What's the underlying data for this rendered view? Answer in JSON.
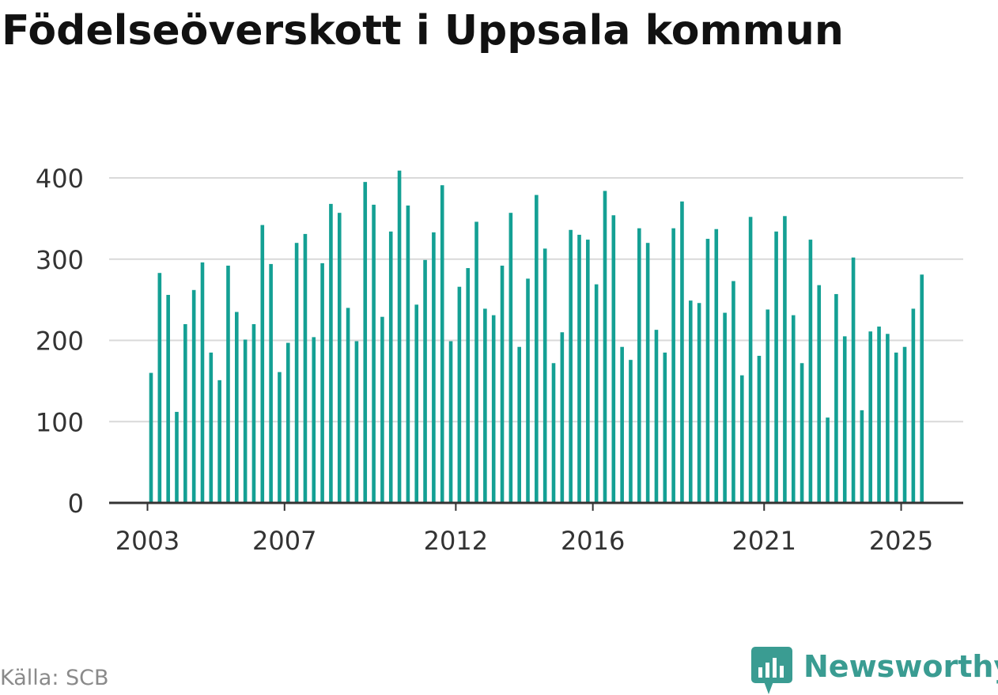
{
  "title": "Födelseöverskott i Uppsala kommun",
  "source": "Källa: SCB",
  "brand": {
    "name": "Newsworthy",
    "color": "#3a9c92",
    "icon": "bar-chart-speech-bubble-icon"
  },
  "colors": {
    "bar": "#14a094",
    "grid": "#d9d9d9",
    "axis": "#333333",
    "tick_text": "#333333"
  },
  "chart_data": {
    "type": "bar",
    "x_tick_labels": [
      "2003",
      "2007",
      "2012",
      "2016",
      "2021",
      "2025"
    ],
    "x_tick_bar_index": [
      0,
      16,
      36,
      52,
      72,
      88
    ],
    "y_ticks": [
      0,
      100,
      200,
      300,
      400
    ],
    "ylim": [
      0,
      420
    ],
    "grid": "horizontal",
    "values": [
      160,
      283,
      256,
      112,
      220,
      262,
      296,
      185,
      151,
      292,
      235,
      201,
      220,
      342,
      294,
      161,
      197,
      320,
      331,
      204,
      295,
      368,
      357,
      240,
      199,
      395,
      367,
      229,
      334,
      409,
      366,
      244,
      299,
      333,
      391,
      199,
      266,
      289,
      346,
      239,
      231,
      292,
      357,
      192,
      276,
      379,
      313,
      172,
      210,
      336,
      330,
      324,
      269,
      384,
      354,
      192,
      176,
      338,
      320,
      213,
      185,
      338,
      371,
      249,
      246,
      325,
      337,
      234,
      273,
      157,
      352,
      181,
      238,
      334,
      353,
      231,
      172,
      324,
      268,
      105,
      257,
      205,
      302,
      114,
      211,
      217,
      208,
      185,
      192,
      239,
      281
    ]
  }
}
